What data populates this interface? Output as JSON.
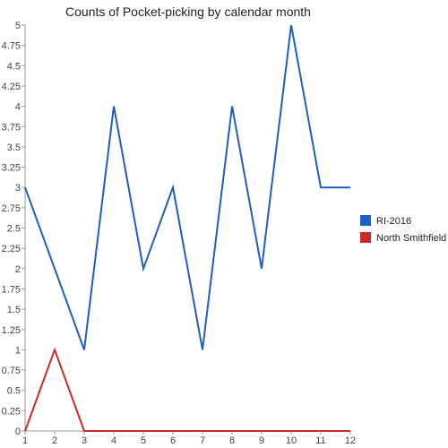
{
  "chart_data": {
    "type": "line",
    "title": "Counts of Pocket-picking by calendar month",
    "xlabel": "",
    "ylabel": "",
    "x": [
      1,
      2,
      3,
      4,
      5,
      6,
      7,
      8,
      9,
      10,
      11,
      12
    ],
    "x_tick_labels": [
      "1",
      "2",
      "3",
      "4",
      "5",
      "6",
      "7",
      "8",
      "9",
      "10",
      "11",
      "12"
    ],
    "xlim": [
      1,
      12
    ],
    "ylim": [
      0,
      5
    ],
    "y_tick_labels": [
      "0",
      "0.25",
      "0.5",
      "0.75",
      "1",
      "1.25",
      "1.5",
      "1.75",
      "2",
      "2.25",
      "2.5",
      "2.75",
      "3",
      "3.25",
      "3.5",
      "3.75",
      "4",
      "4.25",
      "4.5",
      "4.75",
      "5"
    ],
    "grid": false,
    "legend": "right",
    "series": [
      {
        "name": "RI-2016",
        "color": "#1f5fbf",
        "values": [
          3,
          2,
          1,
          4,
          2,
          3,
          1,
          4,
          2,
          5,
          3,
          3
        ]
      },
      {
        "name": "North Smithfield",
        "color": "#cc2a2a",
        "values": [
          0,
          1,
          0,
          0,
          0,
          0,
          0,
          0,
          0,
          0,
          0,
          0
        ]
      }
    ]
  }
}
